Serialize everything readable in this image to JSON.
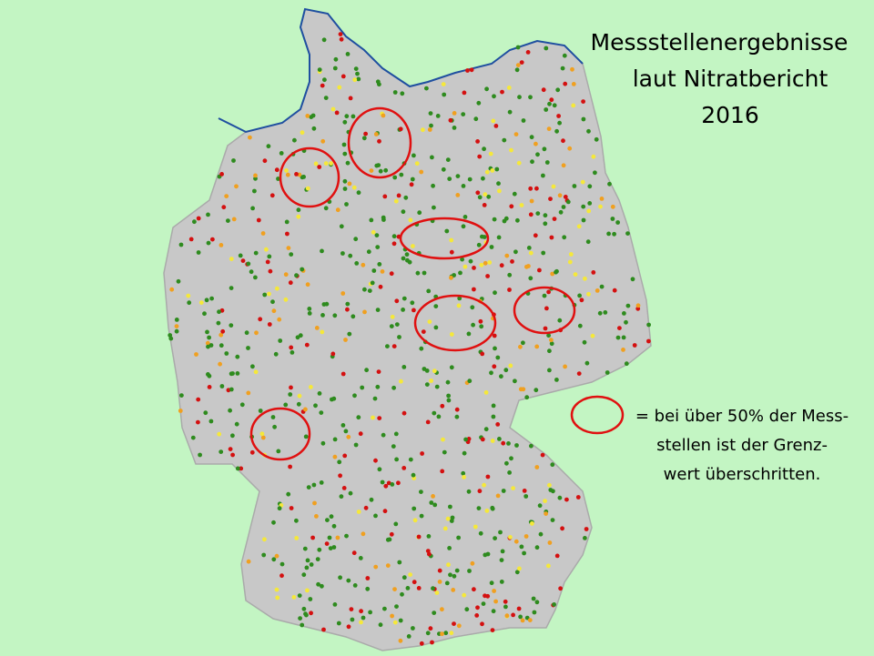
{
  "title": {
    "lines": [
      "Messstellenergebnisse",
      "laut  Nitratbericht",
      "2016"
    ]
  },
  "legend": {
    "lines": [
      "= bei über 50% der Mess-",
      "stellen ist der Grenz-",
      "wert überschritten."
    ]
  }
}
